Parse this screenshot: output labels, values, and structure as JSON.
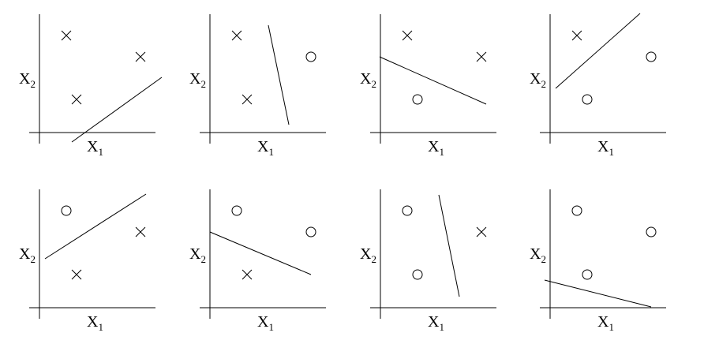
{
  "panels": [
    {
      "x_label": {
        "base": "X",
        "sub": "1"
      },
      "y_label": {
        "base": "X",
        "sub": "2"
      }
    },
    {
      "x_label": {
        "base": "X",
        "sub": "1"
      },
      "y_label": {
        "base": "X",
        "sub": "2"
      }
    },
    {
      "x_label": {
        "base": "X",
        "sub": "1"
      },
      "y_label": {
        "base": "X",
        "sub": "2"
      }
    },
    {
      "x_label": {
        "base": "X",
        "sub": "1"
      },
      "y_label": {
        "base": "X",
        "sub": "2"
      }
    },
    {
      "x_label": {
        "base": "X",
        "sub": "1"
      },
      "y_label": {
        "base": "X",
        "sub": "2"
      }
    },
    {
      "x_label": {
        "base": "X",
        "sub": "1"
      },
      "y_label": {
        "base": "X",
        "sub": "2"
      }
    },
    {
      "x_label": {
        "base": "X",
        "sub": "1"
      },
      "y_label": {
        "base": "X",
        "sub": "2"
      }
    },
    {
      "x_label": {
        "base": "X",
        "sub": "1"
      },
      "y_label": {
        "base": "X",
        "sub": "2"
      }
    }
  ]
}
